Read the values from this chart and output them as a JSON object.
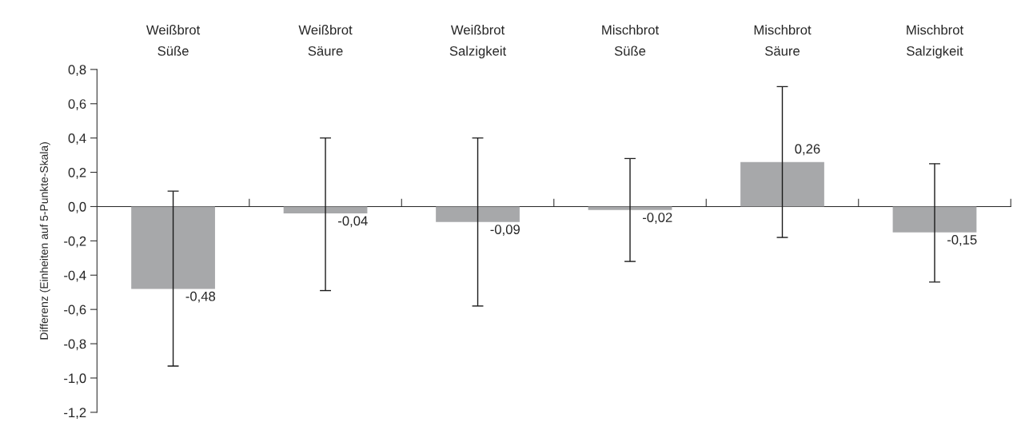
{
  "chart_data": {
    "type": "bar",
    "ylabel": "Differenz (Einheiten auf 5-Punkte-Skala)",
    "categories": [
      "Weißbrot\nSüße",
      "Weißbrot\nSäure",
      "Weißbrot\nSalzigkeit",
      "Mischbrot\nSüße",
      "Mischbrot\nSäure",
      "Mischbrot\nSalzigkeit"
    ],
    "values": [
      -0.48,
      -0.04,
      -0.09,
      -0.02,
      0.26,
      -0.15
    ],
    "value_labels": [
      "-0,48",
      "-0,04",
      "-0,09",
      "-0,02",
      "0,26",
      "-0,15"
    ],
    "errors": [
      [
        -0.93,
        0.09
      ],
      [
        -0.49,
        0.4
      ],
      [
        -0.58,
        0.4
      ],
      [
        -0.32,
        0.28
      ],
      [
        -0.18,
        0.7
      ],
      [
        -0.44,
        0.25
      ]
    ],
    "color": "#a7a8aa",
    "ylim": [
      -1.2,
      0.8
    ],
    "yticks": [
      {
        "value": -1.2,
        "label": "-1,2"
      },
      {
        "value": -1.0,
        "label": "-1,0"
      },
      {
        "value": -0.8,
        "label": "-0,8"
      },
      {
        "value": -0.6,
        "label": "-0,6"
      },
      {
        "value": -0.4,
        "label": "-0,4"
      },
      {
        "value": -0.2,
        "label": "-0,2"
      },
      {
        "value": 0.0,
        "label": "0,0"
      },
      {
        "value": 0.2,
        "label": "0,2"
      },
      {
        "value": 0.4,
        "label": "0,4"
      },
      {
        "value": 0.6,
        "label": "0,6"
      },
      {
        "value": 0.8,
        "label": "0,8"
      }
    ],
    "legend": false
  }
}
